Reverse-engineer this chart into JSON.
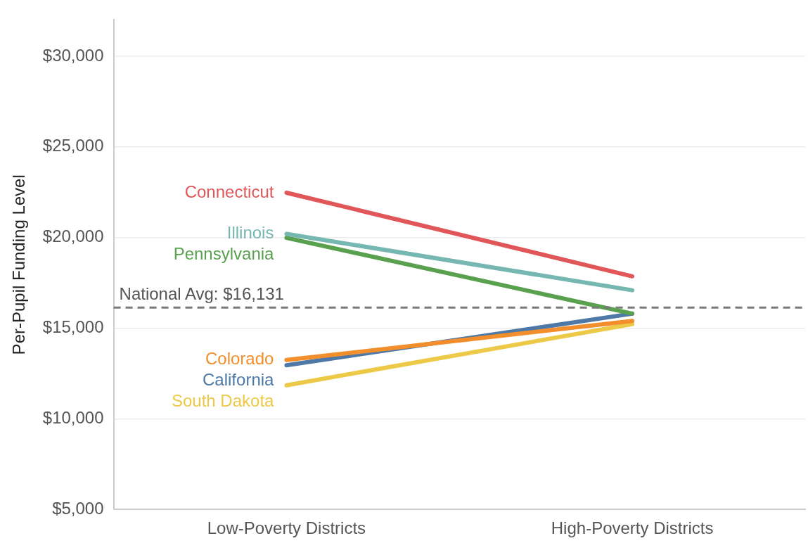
{
  "chart_data": {
    "type": "line",
    "ylabel": "Per-Pupil Funding Level",
    "categories": [
      "Low-Poverty Districts",
      "High-Poverty Districts"
    ],
    "series": [
      {
        "name": "Connecticut",
        "color": "#e15759",
        "values": [
          22470,
          17860
        ]
      },
      {
        "name": "Illinois",
        "color": "#76b7b2",
        "values": [
          20200,
          17090
        ]
      },
      {
        "name": "Pennsylvania",
        "color": "#59a14f",
        "values": [
          19980,
          15800
        ]
      },
      {
        "name": "Colorado",
        "color": "#f28e2b",
        "values": [
          13240,
          15400
        ]
      },
      {
        "name": "California",
        "color": "#4e79a7",
        "values": [
          12950,
          15800
        ]
      },
      {
        "name": "South Dakota",
        "color": "#edc948",
        "values": [
          11850,
          15220
        ]
      }
    ],
    "ylim": [
      5000,
      32000
    ],
    "yticks": [
      {
        "value": 5000,
        "label": "$5,000"
      },
      {
        "value": 10000,
        "label": "$10,000"
      },
      {
        "value": 15000,
        "label": "$15,000"
      },
      {
        "value": 20000,
        "label": "$20,000"
      },
      {
        "value": 25000,
        "label": "$25,000"
      },
      {
        "value": 30000,
        "label": "$30,000"
      }
    ],
    "ref_lines": [
      {
        "axis": "y",
        "value": 16131,
        "label": "National Avg: $16,131",
        "color": "#7a7a7a",
        "line_style": "dashed"
      }
    ],
    "grid": "y",
    "legend": false,
    "marker": "none",
    "line_style": "solid"
  }
}
